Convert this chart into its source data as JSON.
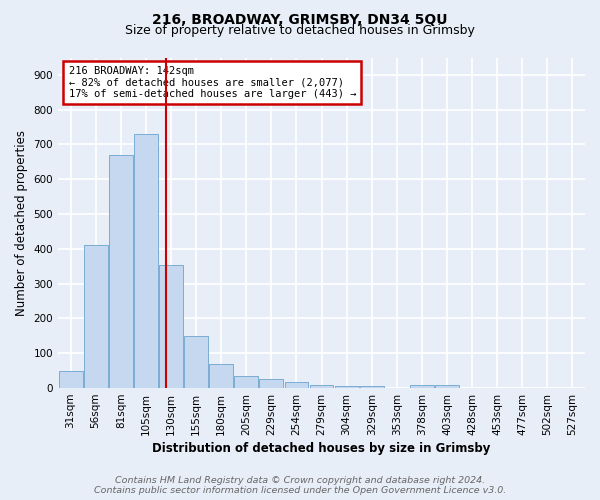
{
  "title": "216, BROADWAY, GRIMSBY, DN34 5QU",
  "subtitle": "Size of property relative to detached houses in Grimsby",
  "xlabel": "Distribution of detached houses by size in Grimsby",
  "ylabel": "Number of detached properties",
  "bin_labels": [
    "31sqm",
    "56sqm",
    "81sqm",
    "105sqm",
    "130sqm",
    "155sqm",
    "180sqm",
    "205sqm",
    "229sqm",
    "254sqm",
    "279sqm",
    "304sqm",
    "329sqm",
    "353sqm",
    "378sqm",
    "403sqm",
    "428sqm",
    "453sqm",
    "477sqm",
    "502sqm",
    "527sqm"
  ],
  "bar_values": [
    50,
    410,
    670,
    730,
    355,
    150,
    70,
    35,
    25,
    18,
    10,
    5,
    5,
    0,
    8,
    8,
    0,
    0,
    0,
    0,
    0
  ],
  "bar_color": "#c5d8f0",
  "bar_edge_color": "#7aadd4",
  "vline_x_index": 3.82,
  "vline_color": "#cc0000",
  "annotation_text": "216 BROADWAY: 142sqm\n← 82% of detached houses are smaller (2,077)\n17% of semi-detached houses are larger (443) →",
  "annotation_box_color": "#ffffff",
  "annotation_box_edge": "#cc0000",
  "ylim": [
    0,
    950
  ],
  "yticks": [
    0,
    100,
    200,
    300,
    400,
    500,
    600,
    700,
    800,
    900
  ],
  "footer_line1": "Contains HM Land Registry data © Crown copyright and database right 2024.",
  "footer_line2": "Contains public sector information licensed under the Open Government Licence v3.0.",
  "bg_color": "#e8eef8",
  "plot_bg_color": "#e8eef8",
  "grid_color": "#ffffff",
  "title_fontsize": 10,
  "subtitle_fontsize": 9,
  "axis_label_fontsize": 8.5,
  "tick_fontsize": 7.5,
  "footer_fontsize": 6.8,
  "figwidth": 6.0,
  "figheight": 5.0,
  "dpi": 100
}
